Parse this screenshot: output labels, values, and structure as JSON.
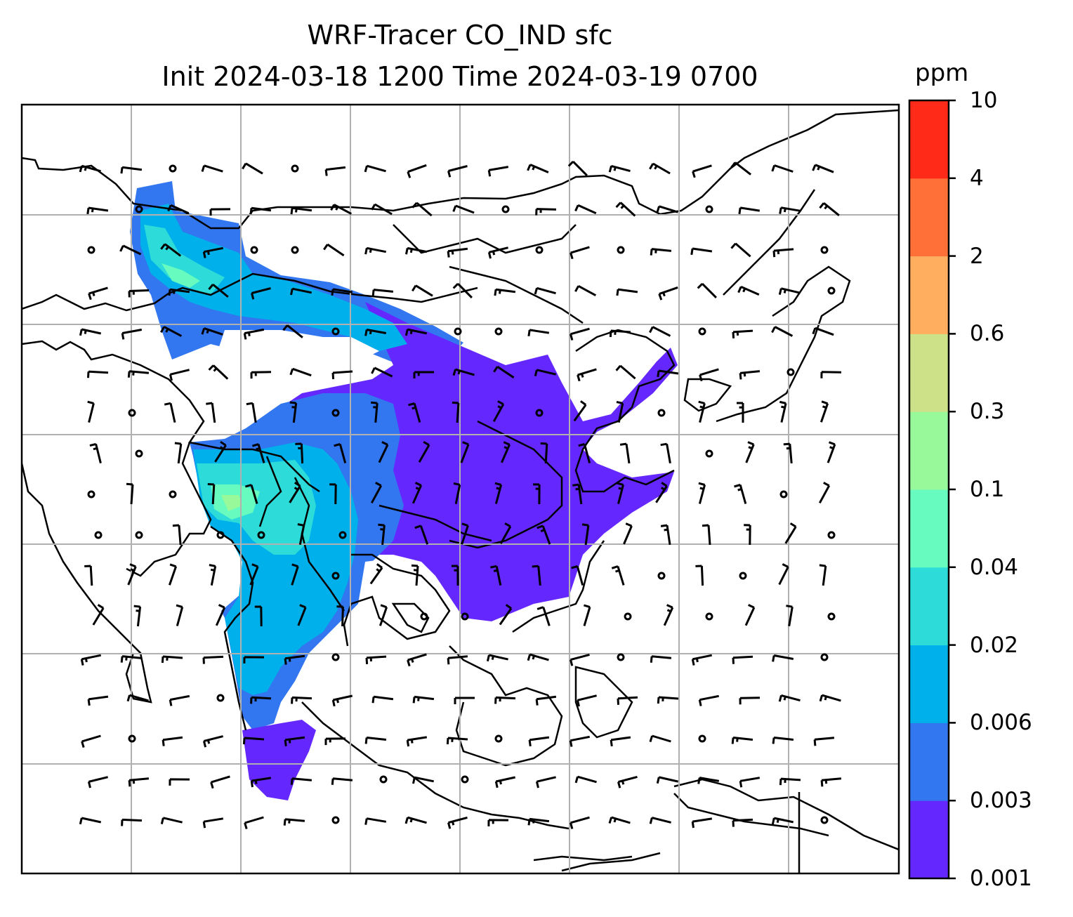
{
  "title": {
    "line1": "WRF-Tracer CO_IND sfc",
    "line2": "Init 2024-03-18 1200 Time 2024-03-19 0700"
  },
  "colorbar": {
    "units": "ppm",
    "levels": [
      {
        "label": "0.001",
        "color": "#6428ff"
      },
      {
        "label": "0.003",
        "color": "#3276f0"
      },
      {
        "label": "0.006",
        "color": "#00b0ea"
      },
      {
        "label": "0.02",
        "color": "#2ddcd8"
      },
      {
        "label": "0.04",
        "color": "#68fbbf"
      },
      {
        "label": "0.1",
        "color": "#98f99a"
      },
      {
        "label": "0.3",
        "color": "#cde288"
      },
      {
        "label": "0.6",
        "color": "#ffae60"
      },
      {
        "label": "2",
        "color": "#ff7038"
      },
      {
        "label": "4",
        "color": "#ff2a18"
      },
      {
        "label": "10",
        "color": null
      }
    ]
  }
}
